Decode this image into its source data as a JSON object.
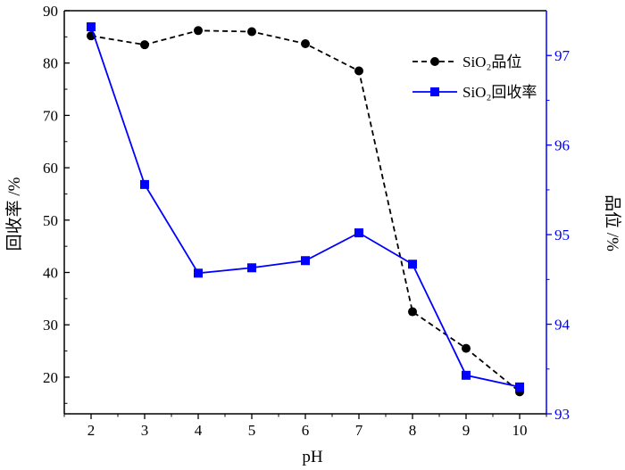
{
  "chart_data": {
    "type": "line",
    "xlabel": "pH",
    "ylabel_left": "回收率 /%",
    "ylabel_right": "品位 /%",
    "x": [
      2,
      3,
      4,
      5,
      6,
      7,
      8,
      9,
      10
    ],
    "xlim": [
      1.5,
      10.5
    ],
    "ylim_left": [
      13,
      90
    ],
    "ylim_right": [
      93,
      97.5
    ],
    "yticks_left": [
      20,
      30,
      40,
      50,
      60,
      70,
      80,
      90
    ],
    "yticks_right": [
      93,
      94,
      95,
      96,
      97
    ],
    "xticks": [
      2,
      3,
      4,
      5,
      6,
      7,
      8,
      9,
      10
    ],
    "grid": false,
    "legend_position": "top-right",
    "series": [
      {
        "name": "SiO₂品位",
        "axis": "left",
        "style": "dashed",
        "marker": "circle",
        "color": "#000000",
        "values": [
          85.2,
          83.5,
          86.2,
          86.0,
          83.7,
          78.5,
          32.5,
          25.5,
          17.2
        ]
      },
      {
        "name": "SiO₂回收率",
        "axis": "right",
        "style": "solid",
        "marker": "square",
        "color": "#0000ff",
        "values": [
          97.32,
          95.56,
          94.57,
          94.63,
          94.71,
          95.02,
          94.67,
          93.43,
          93.3
        ]
      }
    ]
  }
}
